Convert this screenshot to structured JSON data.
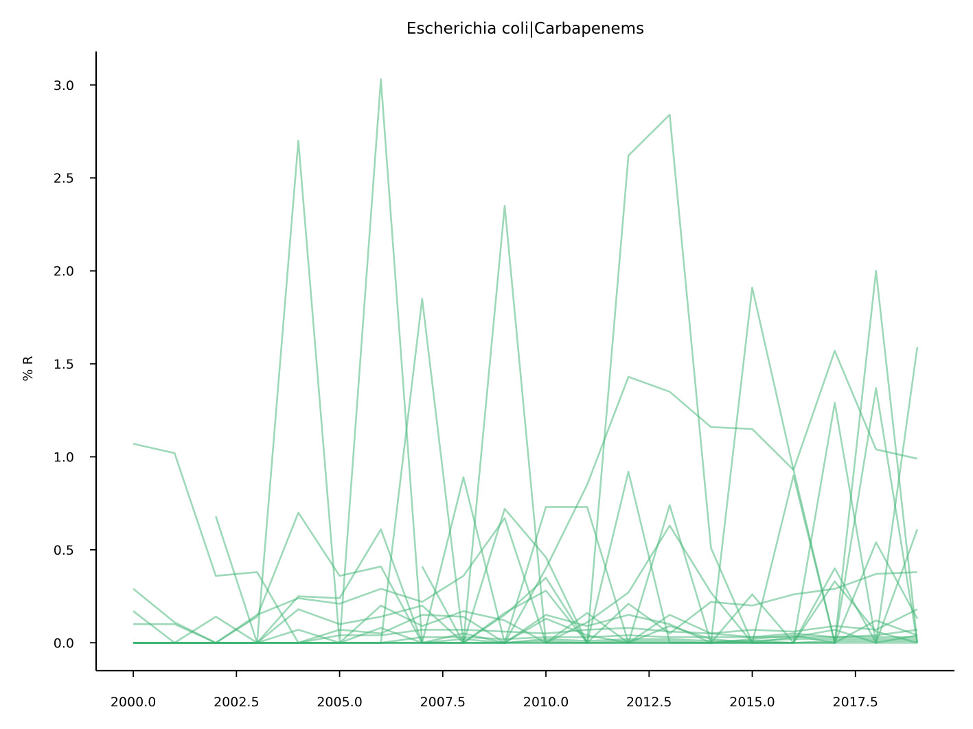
{
  "chart_data": {
    "type": "line",
    "title": "Escherichia coli|Carbapenems",
    "xlabel": "",
    "ylabel": "% R",
    "xlim": [
      1999.1,
      2019.9
    ],
    "ylim": [
      -0.15,
      3.18
    ],
    "x_ticks": [
      2000.0,
      2002.5,
      2005.0,
      2007.5,
      2010.0,
      2012.5,
      2015.0,
      2017.5
    ],
    "x_tick_labels": [
      "2000.0",
      "2002.5",
      "2005.0",
      "2007.5",
      "2010.0",
      "2012.5",
      "2015.0",
      "2017.5"
    ],
    "y_ticks": [
      0.0,
      0.5,
      1.0,
      1.5,
      2.0,
      2.5,
      3.0
    ],
    "y_tick_labels": [
      "0.0",
      "0.5",
      "1.0",
      "1.5",
      "2.0",
      "2.5",
      "3.0"
    ],
    "grid": false,
    "color": "#3cb371",
    "series": [
      {
        "x": [
          2000,
          2001,
          2002,
          2003,
          2004,
          2005,
          2006,
          2007,
          2008,
          2009,
          2010,
          2011,
          2012,
          2013,
          2014,
          2015,
          2016,
          2017,
          2018,
          2019
        ],
        "values": [
          1.07,
          1.02,
          0.36,
          0.38,
          0.0,
          0.0,
          0.0,
          0.0,
          0.0,
          0.0,
          0.4,
          0.85,
          1.43,
          1.35,
          1.16,
          1.15,
          0.93,
          1.57,
          1.04,
          0.99
        ]
      },
      {
        "x": [
          2000,
          2001,
          2002,
          2003,
          2004,
          2005,
          2006,
          2007,
          2008,
          2009,
          2010,
          2011,
          2012,
          2013,
          2014,
          2015,
          2016,
          2017,
          2018,
          2019
        ],
        "values": [
          0.29,
          0.11,
          0.0,
          0.0,
          2.7,
          0.0,
          3.03,
          0.0,
          0.0,
          2.35,
          0.0,
          0.0,
          2.62,
          2.84,
          0.51,
          0.0,
          0.0,
          0.0,
          2.0,
          0.0
        ]
      },
      {
        "x": [
          2000,
          2001,
          2002,
          2003,
          2004,
          2005,
          2006,
          2007,
          2008,
          2009,
          2010,
          2011,
          2012,
          2013,
          2014,
          2015,
          2016,
          2017,
          2018,
          2019
        ],
        "values": [
          0.1,
          0.1,
          0.0,
          0.14,
          0.7,
          0.36,
          0.41,
          0.0,
          0.89,
          0.0,
          0.73,
          0.73,
          0.0,
          0.0,
          0.0,
          1.91,
          0.93,
          0.0,
          1.37,
          0.0
        ]
      },
      {
        "x": [
          2002,
          2003,
          2004,
          2005,
          2006,
          2007,
          2008,
          2009,
          2010,
          2011,
          2012,
          2013,
          2014,
          2015,
          2016,
          2017,
          2018,
          2019
        ],
        "values": [
          0.68,
          0.0,
          0.0,
          0.0,
          0.0,
          1.85,
          0.0,
          0.0,
          0.0,
          0.0,
          0.0,
          0.0,
          0.0,
          0.0,
          0.0,
          1.29,
          0.0,
          1.59
        ]
      },
      {
        "x": [
          2000,
          2001,
          2002,
          2003,
          2004,
          2005,
          2006,
          2007,
          2008,
          2009,
          2010,
          2011,
          2012,
          2013,
          2014,
          2015,
          2016,
          2017,
          2018,
          2019
        ],
        "values": [
          0.17,
          0.0,
          0.14,
          0.0,
          0.25,
          0.24,
          0.61,
          0.0,
          0.0,
          0.72,
          0.46,
          0.0,
          0.92,
          0.0,
          0.0,
          0.0,
          0.9,
          0.0,
          0.54,
          0.13
        ]
      },
      {
        "x": [
          2000,
          2001,
          2002,
          2003,
          2004,
          2005,
          2006,
          2007,
          2008,
          2009,
          2010,
          2011,
          2012,
          2013,
          2014,
          2015,
          2016,
          2017,
          2018,
          2019
        ],
        "values": [
          0.0,
          0.0,
          0.0,
          0.15,
          0.24,
          0.21,
          0.29,
          0.22,
          0.36,
          0.67,
          0.0,
          0.11,
          0.27,
          0.63,
          0.27,
          0.0,
          0.0,
          0.4,
          0.0,
          0.61
        ]
      },
      {
        "x": [
          2007,
          2008,
          2009,
          2010,
          2011,
          2012,
          2013,
          2014,
          2015,
          2016,
          2017,
          2018,
          2019
        ],
        "values": [
          0.41,
          0.0,
          0.15,
          0.35,
          0.0,
          0.0,
          0.74,
          0.0,
          0.26,
          0.0,
          0.33,
          0.06,
          0.0
        ]
      },
      {
        "x": [
          2000,
          2001,
          2002,
          2003,
          2004,
          2005,
          2006,
          2007,
          2008,
          2009,
          2010,
          2011,
          2012,
          2013,
          2014,
          2015,
          2016,
          2017,
          2018,
          2019
        ],
        "values": [
          0.0,
          0.0,
          0.0,
          0.0,
          0.18,
          0.1,
          0.14,
          0.2,
          0.0,
          0.16,
          0.28,
          0.0,
          0.21,
          0.05,
          0.22,
          0.2,
          0.26,
          0.29,
          0.37,
          0.38
        ]
      },
      {
        "x": [
          2000,
          2001,
          2002,
          2003,
          2004,
          2005,
          2006,
          2007,
          2008,
          2009,
          2010,
          2011,
          2012,
          2013,
          2014,
          2015,
          2016,
          2017,
          2018,
          2019
        ],
        "values": [
          0.0,
          0.0,
          0.0,
          0.0,
          0.07,
          0.0,
          0.2,
          0.09,
          0.17,
          0.12,
          0.0,
          0.16,
          0.0,
          0.15,
          0.05,
          0.07,
          0.06,
          0.09,
          0.07,
          0.18
        ]
      },
      {
        "x": [
          2000,
          2001,
          2002,
          2003,
          2004,
          2005,
          2006,
          2007,
          2008,
          2009,
          2010,
          2011,
          2012,
          2013,
          2014,
          2015,
          2016,
          2017,
          2018,
          2019
        ],
        "values": [
          0.0,
          0.0,
          0.0,
          0.0,
          0.0,
          0.07,
          0.05,
          0.15,
          0.14,
          0.0,
          0.15,
          0.09,
          0.15,
          0.1,
          0.0,
          0.02,
          0.04,
          0.0,
          0.12,
          0.04
        ]
      },
      {
        "x": [
          2000,
          2001,
          2002,
          2003,
          2004,
          2005,
          2006,
          2007,
          2008,
          2009,
          2010,
          2011,
          2012,
          2013,
          2014,
          2015,
          2016,
          2017,
          2018,
          2019
        ],
        "values": [
          0.0,
          0.0,
          0.0,
          0.0,
          0.0,
          0.04,
          0.04,
          0.07,
          0.07,
          0.06,
          0.05,
          0.07,
          0.08,
          0.06,
          0.05,
          0.03,
          0.05,
          0.03,
          0.04,
          0.07
        ]
      },
      {
        "x": [
          2000,
          2001,
          2002,
          2003,
          2004,
          2005,
          2006,
          2007,
          2008,
          2009,
          2010,
          2011,
          2012,
          2013,
          2014,
          2015,
          2016,
          2017,
          2018,
          2019
        ],
        "values": [
          0.0,
          0.0,
          0.0,
          0.0,
          0.0,
          0.0,
          0.08,
          0.0,
          0.05,
          0.0,
          0.13,
          0.04,
          0.0,
          0.09,
          0.02,
          0.0,
          0.03,
          0.07,
          0.0,
          0.04
        ]
      },
      {
        "x": [
          2000,
          2001,
          2002,
          2003,
          2004,
          2005,
          2006,
          2007,
          2008,
          2009,
          2010,
          2011,
          2012,
          2013,
          2014,
          2015,
          2016,
          2017,
          2018,
          2019
        ],
        "values": [
          0.0,
          0.0,
          0.0,
          0.0,
          0.0,
          0.0,
          0.0,
          0.03,
          0.03,
          0.02,
          0.03,
          0.03,
          0.04,
          0.03,
          0.03,
          0.03,
          0.03,
          0.03,
          0.03,
          0.03
        ]
      },
      {
        "x": [
          2000,
          2001,
          2002,
          2003,
          2004,
          2005,
          2006,
          2007,
          2008,
          2009,
          2010,
          2011,
          2012,
          2013,
          2014,
          2015,
          2016,
          2017,
          2018,
          2019
        ],
        "values": [
          0.0,
          0.0,
          0.0,
          0.0,
          0.0,
          0.0,
          0.0,
          0.0,
          0.02,
          0.0,
          0.02,
          0.01,
          0.02,
          0.02,
          0.01,
          0.01,
          0.02,
          0.02,
          0.02,
          0.02
        ]
      },
      {
        "x": [
          2000,
          2001,
          2002,
          2003,
          2004,
          2005,
          2006,
          2007,
          2008,
          2009,
          2010,
          2011,
          2012,
          2013,
          2014,
          2015,
          2016,
          2017,
          2018,
          2019
        ],
        "values": [
          0.0,
          0.0,
          0.0,
          0.0,
          0.0,
          0.0,
          0.0,
          0.0,
          0.0,
          0.0,
          0.01,
          0.0,
          0.01,
          0.01,
          0.0,
          0.01,
          0.0,
          0.01,
          0.01,
          0.01
        ]
      },
      {
        "x": [
          2000,
          2001,
          2002,
          2003,
          2004,
          2005,
          2006,
          2007,
          2008,
          2009,
          2010,
          2011,
          2012,
          2013,
          2014,
          2015,
          2016,
          2017,
          2018,
          2019
        ],
        "values": [
          0.0,
          0.0,
          0.0,
          0.0,
          0.0,
          0.0,
          0.0,
          0.0,
          0.0,
          0.0,
          0.0,
          0.0,
          0.0,
          0.0,
          0.0,
          0.0,
          0.0,
          0.0,
          0.0,
          0.0
        ]
      }
    ]
  }
}
